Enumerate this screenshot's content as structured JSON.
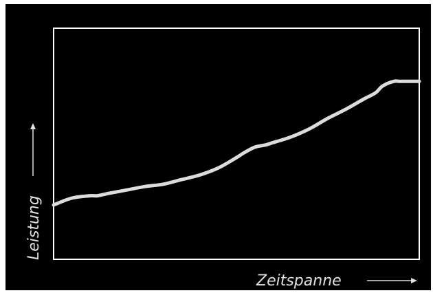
{
  "chart_data": {
    "type": "line",
    "title": "",
    "xlabel": "Zeitspanne",
    "ylabel": "Leistung",
    "grid": false,
    "legend": "none",
    "xlim": [
      0,
      100
    ],
    "ylim": [
      0,
      100
    ],
    "x": [
      0,
      5,
      10,
      12,
      15,
      20,
      25,
      30,
      35,
      40,
      45,
      50,
      52,
      55,
      58,
      60,
      65,
      70,
      75,
      80,
      85,
      88,
      90,
      93,
      95,
      100
    ],
    "series": [
      {
        "values": [
          23.5,
          26.5,
          27.5,
          27.5,
          28.5,
          30,
          31.5,
          32.5,
          34.5,
          36.5,
          39.5,
          44,
          46,
          48.5,
          49.5,
          50.5,
          53,
          56.5,
          61,
          65,
          69.5,
          72,
          75,
          77,
          77,
          77
        ]
      }
    ],
    "colors": {
      "background": "#000000",
      "frame": "#ffffff",
      "line": "#dcdcdc",
      "text": "#e0e0e0"
    }
  }
}
